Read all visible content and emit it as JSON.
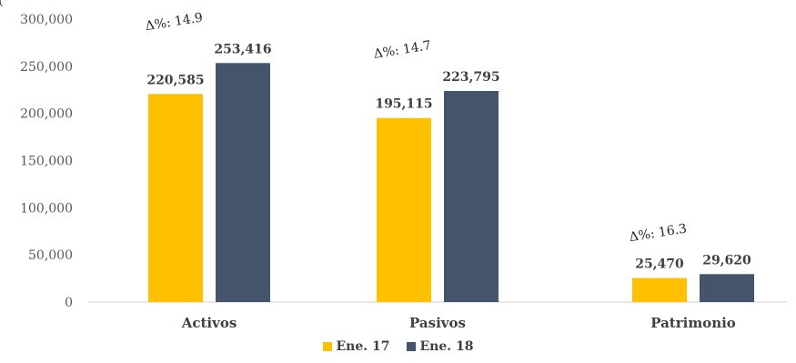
{
  "top_clip_text": "(",
  "chart_data": {
    "type": "bar",
    "categories": [
      "Activos",
      "Pasivos",
      "Patrimonio"
    ],
    "series": [
      {
        "name": "Ene. 17",
        "values": [
          220585,
          195115,
          25470
        ],
        "labels": [
          "220,585",
          "195,115",
          "25,470"
        ],
        "color": "#FFC000"
      },
      {
        "name": "Ene. 18",
        "values": [
          253416,
          223795,
          29620
        ],
        "labels": [
          "253,416",
          "223,795",
          "29,620"
        ],
        "color": "#44546A"
      }
    ],
    "variation_labels": [
      "Δ%: 14.9",
      "Δ%: 14.7",
      "Δ%: 16.3"
    ],
    "ylim": [
      0,
      300000
    ],
    "yticks": [
      0,
      50000,
      100000,
      150000,
      200000,
      250000,
      300000
    ],
    "ytick_labels": [
      "0",
      "50,000",
      "100,000",
      "150,000",
      "200,000",
      "250,000",
      "300,000"
    ],
    "legend_position": "bottom",
    "grid": false
  }
}
